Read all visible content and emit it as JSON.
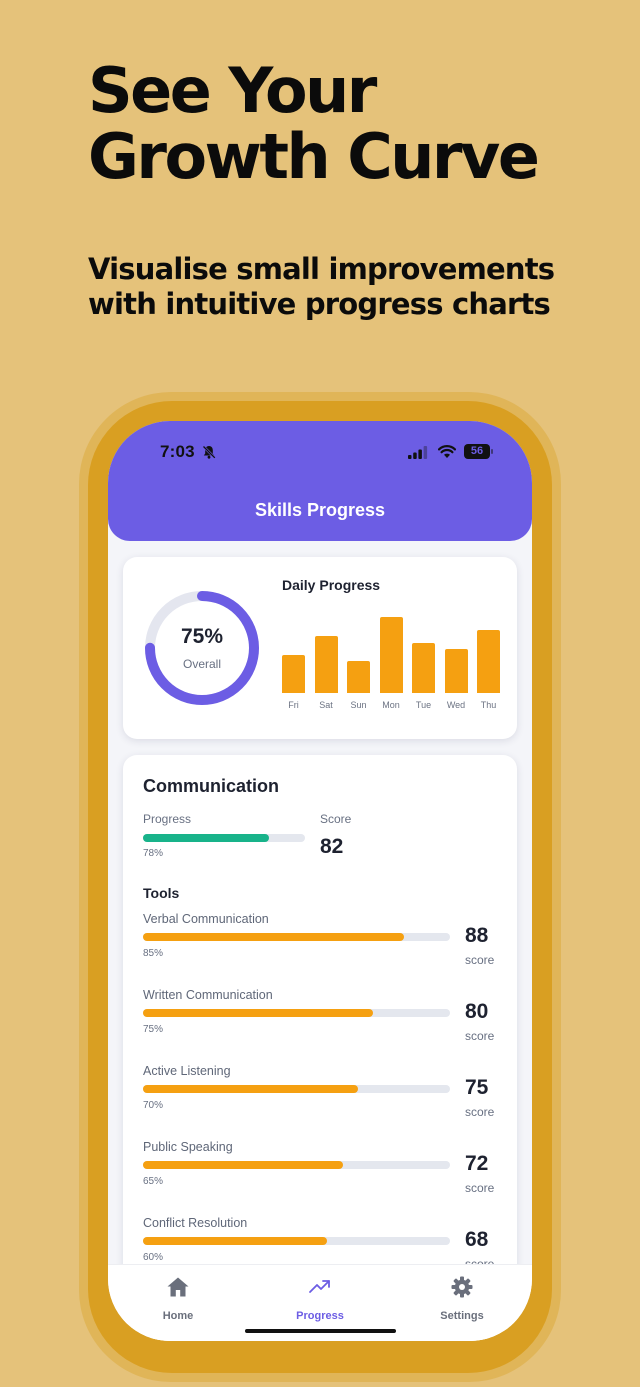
{
  "hero": {
    "title_line1": "See Your",
    "title_line2": "Growth Curve",
    "subtitle_line1": "Visualise small improvements",
    "subtitle_line2": "with intuitive progress charts"
  },
  "status_bar": {
    "time": "7:03",
    "battery": "56"
  },
  "header": {
    "title": "Skills Progress"
  },
  "summary": {
    "overall_percent": "75%",
    "overall_label": "Overall",
    "overall_value": 0.75,
    "daily_title": "Daily Progress"
  },
  "chart_data": {
    "type": "bar",
    "title": "Daily Progress",
    "categories": [
      "Fri",
      "Sat",
      "Sun",
      "Mon",
      "Tue",
      "Wed",
      "Thu"
    ],
    "values": [
      38,
      57,
      32,
      76,
      50,
      44,
      63
    ],
    "ylim": [
      0,
      80
    ]
  },
  "skill": {
    "name": "Communication",
    "progress_label": "Progress",
    "score_label": "Score",
    "progress_percent": "78%",
    "progress_value": 0.78,
    "score": "82",
    "tools_heading": "Tools",
    "tools": [
      {
        "name": "Verbal Communication",
        "percent": "85%",
        "value": 0.85,
        "score": "88",
        "score_label": "score"
      },
      {
        "name": "Written Communication",
        "percent": "75%",
        "value": 0.75,
        "score": "80",
        "score_label": "score"
      },
      {
        "name": "Active Listening",
        "percent": "70%",
        "value": 0.7,
        "score": "75",
        "score_label": "score"
      },
      {
        "name": "Public Speaking",
        "percent": "65%",
        "value": 0.65,
        "score": "72",
        "score_label": "score"
      },
      {
        "name": "Conflict Resolution",
        "percent": "60%",
        "value": 0.6,
        "score": "68",
        "score_label": "score"
      }
    ]
  },
  "tabs": [
    {
      "label": "Home",
      "icon": "home-icon"
    },
    {
      "label": "Progress",
      "icon": "trending-up-icon"
    },
    {
      "label": "Settings",
      "icon": "gear-icon"
    }
  ],
  "colors": {
    "background": "#E5C27A",
    "phone_frame": "#D99F22",
    "accent": "#6C5DE4",
    "bar": "#F5A011",
    "overall_bar": "#18B38A"
  }
}
